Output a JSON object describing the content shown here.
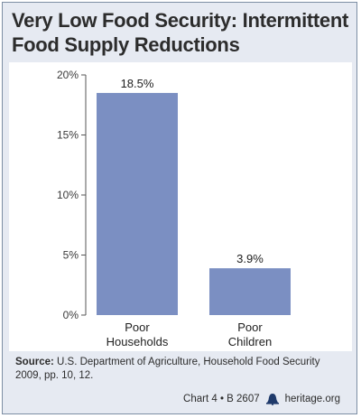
{
  "title": "Very Low Food Security: Intermittent Food Supply Reductions",
  "chart_data": {
    "type": "bar",
    "categories": [
      "Poor Households",
      "Poor Children"
    ],
    "category_lines": [
      [
        "Poor",
        "Households"
      ],
      [
        "Poor",
        "Children"
      ]
    ],
    "values": [
      18.5,
      3.9
    ],
    "value_labels": [
      "18.5%",
      "3.9%"
    ],
    "ylim": [
      0,
      20
    ],
    "yticks": [
      0,
      5,
      10,
      15,
      20
    ],
    "ytick_labels": [
      "0%",
      "5%",
      "10%",
      "15%",
      "20%"
    ],
    "bar_color": "#7b8fc2",
    "grid": false
  },
  "source": {
    "lead": "Source:",
    "text": "U.S. Department of Agriculture, Household Food Security 2009, pp. 10, 12."
  },
  "footer": {
    "chart_id": "Chart 4 • B 2607",
    "site": "heritage.org",
    "icon": "liberty-bell-icon"
  }
}
